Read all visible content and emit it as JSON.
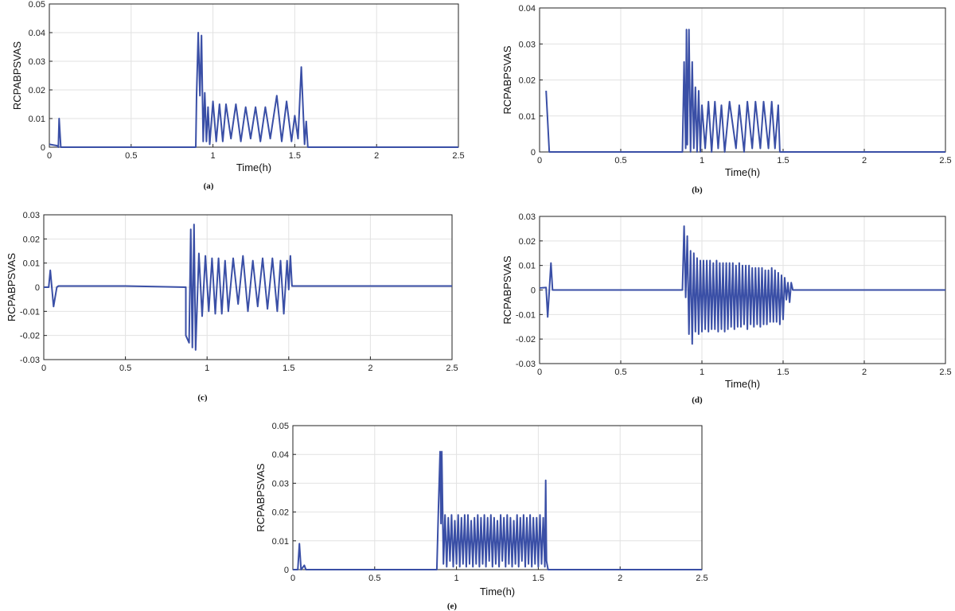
{
  "colors": {
    "series": "#3a4fa6",
    "grid": "#e2e2e2",
    "axis": "#222222"
  },
  "chart_data": [
    {
      "panel": "(a)",
      "type": "line",
      "xlabel": "Time(h)",
      "ylabel": "RCPABPSVAS",
      "xlim": [
        0,
        2.5
      ],
      "ylim": [
        0,
        0.05
      ],
      "grid": true,
      "xticks": [
        0,
        0.5,
        1,
        1.5,
        2,
        2.5
      ],
      "xtick_labels": [
        "0",
        "0.5",
        "1",
        "1.5",
        "2",
        "2.5"
      ],
      "yticks": [
        0,
        0.01,
        0.02,
        0.03,
        0.04,
        0.05
      ],
      "ytick_labels": [
        "0",
        "0.01",
        "0.02",
        "0.03",
        "0.04",
        "0.05"
      ],
      "series": [
        {
          "x": [
            0,
            0.05,
            0.055,
            0.06,
            0.07,
            0.1,
            0.5,
            0.89,
            0.895,
            0.9,
            0.91,
            0.92,
            0.93,
            0.94,
            0.95,
            0.96,
            0.97,
            0.98,
            1.0,
            1.02,
            1.04,
            1.06,
            1.08,
            1.11,
            1.14,
            1.17,
            1.2,
            1.23,
            1.26,
            1.29,
            1.32,
            1.35,
            1.39,
            1.42,
            1.45,
            1.48,
            1.5,
            1.52,
            1.54,
            1.56,
            1.57,
            1.58,
            1.6,
            2.0,
            2.5
          ],
          "y": [
            0.001,
            0.0005,
            0.0,
            0.01,
            0.0,
            0.0,
            0.0,
            0.0,
            0.0,
            0.018,
            0.04,
            0.018,
            0.039,
            0.002,
            0.019,
            0.002,
            0.014,
            0.001,
            0.016,
            0.002,
            0.015,
            0.002,
            0.015,
            0.003,
            0.015,
            0.002,
            0.014,
            0.003,
            0.014,
            0.002,
            0.014,
            0.003,
            0.018,
            0.002,
            0.016,
            0.002,
            0.011,
            0.003,
            0.028,
            0.001,
            0.009,
            0.0,
            0.0,
            0.0,
            0.0
          ]
        }
      ]
    },
    {
      "panel": "(b)",
      "type": "line",
      "xlabel": "Time(h)",
      "ylabel": "RCPABPSVAS",
      "xlim": [
        0,
        2.5
      ],
      "ylim": [
        0,
        0.04
      ],
      "grid": true,
      "xticks": [
        0,
        0.5,
        1,
        1.5,
        2,
        2.5
      ],
      "xtick_labels": [
        "0",
        "0.5",
        "1",
        "1.5",
        "2",
        "2.5"
      ],
      "yticks": [
        0,
        0.01,
        0.02,
        0.03,
        0.04
      ],
      "ytick_labels": [
        "0",
        "0.01",
        "0.02",
        "0.03",
        "0.04"
      ],
      "series": [
        {
          "x": [
            0.04,
            0.06,
            0.07,
            0.5,
            0.88,
            0.89,
            0.9,
            0.905,
            0.91,
            0.92,
            0.93,
            0.94,
            0.95,
            0.96,
            0.97,
            0.98,
            0.99,
            1.0,
            1.02,
            1.04,
            1.06,
            1.08,
            1.1,
            1.12,
            1.14,
            1.17,
            1.21,
            1.23,
            1.26,
            1.28,
            1.31,
            1.33,
            1.36,
            1.38,
            1.41,
            1.43,
            1.45,
            1.47,
            1.48,
            2.0,
            2.5
          ],
          "y": [
            0.017,
            0.0,
            0.0,
            0.0,
            0.0,
            0.025,
            0.001,
            0.034,
            0.002,
            0.034,
            0.0,
            0.025,
            0.001,
            0.018,
            0.0,
            0.017,
            0.0,
            0.013,
            0.001,
            0.014,
            0.0,
            0.014,
            0.001,
            0.013,
            0.0,
            0.014,
            0.001,
            0.013,
            0.0,
            0.014,
            0.001,
            0.014,
            0.001,
            0.014,
            0.001,
            0.014,
            0.001,
            0.013,
            0.0,
            0.0,
            0.0
          ]
        }
      ]
    },
    {
      "panel": "(c)",
      "type": "line",
      "xlabel": "",
      "ylabel": "RCPABPSVAS",
      "xlim": [
        0,
        2.5
      ],
      "ylim": [
        -0.03,
        0.03
      ],
      "grid": true,
      "xticks": [
        0,
        0.5,
        1,
        1.5,
        2,
        2.5
      ],
      "xtick_labels": [
        "0",
        "0.5",
        "1",
        "1.5",
        "2",
        "2.5"
      ],
      "yticks": [
        -0.03,
        -0.02,
        -0.01,
        0,
        0.01,
        0.02,
        0.03
      ],
      "ytick_labels": [
        "-0.03",
        "-0.02",
        "-0.01",
        "0",
        "0.01",
        "0.02",
        "0.03"
      ],
      "series": [
        {
          "x": [
            0,
            0.03,
            0.04,
            0.06,
            0.08,
            0.09,
            0.5,
            0.87,
            0.87,
            0.89,
            0.9,
            0.91,
            0.92,
            0.93,
            0.95,
            0.97,
            0.99,
            1.01,
            1.03,
            1.05,
            1.07,
            1.09,
            1.11,
            1.13,
            1.16,
            1.19,
            1.22,
            1.25,
            1.28,
            1.31,
            1.34,
            1.37,
            1.4,
            1.43,
            1.45,
            1.47,
            1.49,
            1.5,
            1.51,
            1.52,
            2.0,
            2.5
          ],
          "y": [
            0.0,
            0.0,
            0.007,
            -0.008,
            0.0,
            0.0005,
            0.0005,
            0.0,
            -0.02,
            -0.023,
            0.024,
            -0.025,
            0.026,
            -0.026,
            0.014,
            -0.012,
            0.013,
            -0.01,
            0.012,
            -0.011,
            0.012,
            -0.011,
            0.011,
            -0.01,
            0.012,
            -0.007,
            0.013,
            -0.01,
            0.011,
            -0.008,
            0.012,
            -0.009,
            0.012,
            -0.01,
            0.011,
            -0.011,
            0.011,
            -0.001,
            0.013,
            0.0005,
            0.0005,
            0.0005
          ]
        }
      ]
    },
    {
      "panel": "(d)",
      "type": "line",
      "xlabel": "Time(h)",
      "ylabel": "RCPABPSVAS",
      "xlim": [
        0,
        2.5
      ],
      "ylim": [
        -0.03,
        0.03
      ],
      "grid": true,
      "xticks": [
        0,
        0.5,
        1,
        1.5,
        2,
        2.5
      ],
      "xtick_labels": [
        "0",
        "0.5",
        "1",
        "1.5",
        "2",
        "2.5"
      ],
      "yticks": [
        -0.03,
        -0.02,
        -0.01,
        0,
        0.01,
        0.02,
        0.03
      ],
      "ytick_labels": [
        "-0.03",
        "-0.02",
        "-0.01",
        "0",
        "0.01",
        "0.02",
        "0.03"
      ],
      "series": [
        {
          "x": [
            0,
            0.04,
            0.05,
            0.07,
            0.08,
            0.1,
            0.5,
            0.88,
            0.89,
            0.9,
            0.91,
            0.92,
            0.93,
            0.94,
            0.95,
            0.96,
            0.97,
            0.98,
            0.99,
            1.0,
            1.01,
            1.02,
            1.03,
            1.04,
            1.05,
            1.06,
            1.07,
            1.08,
            1.09,
            1.1,
            1.11,
            1.12,
            1.13,
            1.14,
            1.15,
            1.16,
            1.17,
            1.18,
            1.19,
            1.2,
            1.21,
            1.22,
            1.23,
            1.24,
            1.25,
            1.26,
            1.27,
            1.28,
            1.29,
            1.3,
            1.31,
            1.32,
            1.33,
            1.34,
            1.35,
            1.36,
            1.37,
            1.38,
            1.39,
            1.4,
            1.41,
            1.42,
            1.43,
            1.44,
            1.45,
            1.46,
            1.47,
            1.48,
            1.49,
            1.5,
            1.51,
            1.52,
            1.53,
            1.54,
            1.55,
            1.56,
            2.0,
            2.5
          ],
          "y": [
            0.0008,
            0.001,
            -0.011,
            0.011,
            0.0,
            0.0,
            0.0,
            0.0,
            0.026,
            -0.003,
            0.022,
            -0.018,
            0.016,
            -0.022,
            0.015,
            -0.017,
            0.013,
            -0.018,
            0.012,
            -0.017,
            0.012,
            -0.016,
            0.012,
            -0.017,
            0.012,
            -0.016,
            0.011,
            -0.016,
            0.012,
            -0.017,
            0.011,
            -0.016,
            0.011,
            -0.017,
            0.011,
            -0.016,
            0.011,
            -0.015,
            0.011,
            -0.016,
            0.01,
            -0.015,
            0.011,
            -0.015,
            0.01,
            -0.014,
            0.01,
            -0.016,
            0.01,
            -0.014,
            0.009,
            -0.015,
            0.009,
            -0.014,
            0.009,
            -0.015,
            0.009,
            -0.014,
            0.008,
            -0.014,
            0.008,
            -0.013,
            0.009,
            -0.013,
            0.008,
            -0.013,
            0.007,
            -0.014,
            0.006,
            -0.012,
            0.005,
            -0.004,
            0.003,
            -0.005,
            0.003,
            0.0,
            0.0,
            0.0
          ]
        }
      ]
    },
    {
      "panel": "(e)",
      "type": "line",
      "xlabel": "Time(h)",
      "ylabel": "RCPABPSVAS",
      "xlim": [
        0,
        2.5
      ],
      "ylim": [
        0,
        0.05
      ],
      "grid": true,
      "xticks": [
        0,
        0.5,
        1,
        1.5,
        2,
        2.5
      ],
      "xtick_labels": [
        "0",
        "0.5",
        "1",
        "1.5",
        "2",
        "2.5"
      ],
      "yticks": [
        0,
        0.01,
        0.02,
        0.03,
        0.04,
        0.05
      ],
      "ytick_labels": [
        "0",
        "0.01",
        "0.02",
        "0.03",
        "0.04",
        "0.05"
      ],
      "series": [
        {
          "x": [
            0,
            0.03,
            0.04,
            0.05,
            0.07,
            0.08,
            0.09,
            0.5,
            0.88,
            0.89,
            0.9,
            0.905,
            0.91,
            0.92,
            0.93,
            0.94,
            0.95,
            0.96,
            0.97,
            0.98,
            0.99,
            1.0,
            1.01,
            1.02,
            1.03,
            1.04,
            1.05,
            1.06,
            1.07,
            1.08,
            1.09,
            1.1,
            1.11,
            1.12,
            1.13,
            1.14,
            1.15,
            1.16,
            1.17,
            1.18,
            1.19,
            1.2,
            1.21,
            1.22,
            1.23,
            1.24,
            1.25,
            1.26,
            1.27,
            1.28,
            1.29,
            1.3,
            1.31,
            1.32,
            1.33,
            1.34,
            1.35,
            1.36,
            1.37,
            1.38,
            1.39,
            1.4,
            1.41,
            1.42,
            1.43,
            1.44,
            1.45,
            1.46,
            1.47,
            1.48,
            1.49,
            1.5,
            1.51,
            1.52,
            1.53,
            1.54,
            1.545,
            1.55,
            1.56,
            2.0,
            2.5
          ],
          "y": [
            0.0,
            0.0,
            0.009,
            0.0,
            0.0015,
            0.0,
            0.0,
            0.0,
            0.0,
            0.022,
            0.041,
            0.016,
            0.041,
            0.002,
            0.019,
            0.001,
            0.018,
            0.003,
            0.019,
            0.001,
            0.017,
            0.002,
            0.019,
            0.001,
            0.018,
            0.002,
            0.019,
            0.001,
            0.019,
            0.002,
            0.017,
            0.001,
            0.018,
            0.002,
            0.019,
            0.001,
            0.018,
            0.002,
            0.019,
            0.001,
            0.018,
            0.003,
            0.019,
            0.001,
            0.018,
            0.002,
            0.017,
            0.001,
            0.019,
            0.003,
            0.018,
            0.001,
            0.019,
            0.002,
            0.018,
            0.001,
            0.017,
            0.002,
            0.019,
            0.001,
            0.018,
            0.003,
            0.019,
            0.001,
            0.018,
            0.002,
            0.019,
            0.001,
            0.018,
            0.002,
            0.018,
            0.001,
            0.019,
            0.002,
            0.018,
            0.001,
            0.031,
            0.003,
            0.0,
            0.0,
            0.0
          ]
        }
      ]
    }
  ]
}
